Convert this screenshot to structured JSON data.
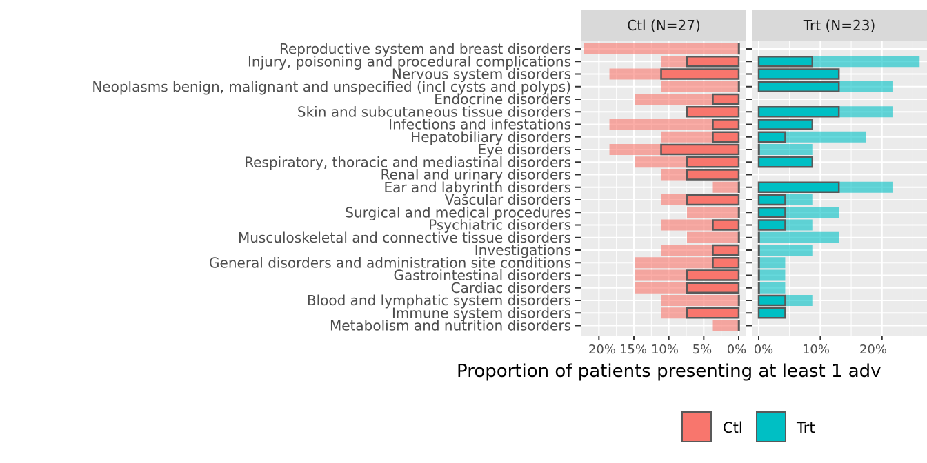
{
  "chart_data": {
    "type": "bar",
    "facets": [
      "Ctl (N=27)",
      "Trt (N=23)"
    ],
    "xlabel": "Proportion of patients presenting at least 1 adv",
    "x_ticks_left": [
      "20%",
      "15%",
      "10%",
      "5%",
      "0%"
    ],
    "x_ticks_right": [
      "0%",
      "10%",
      "20%"
    ],
    "legend": [
      {
        "name": "Ctl",
        "color": "#F8766D"
      },
      {
        "name": "Trt",
        "color": "#00BFC4"
      }
    ],
    "legend_position": "bottom",
    "categories": [
      "Reproductive system and breast disorders",
      "Injury, poisoning and procedural complications",
      "Nervous system disorders",
      "Neoplasms benign, malignant and unspecified (incl cysts and polyps)",
      "Endocrine disorders",
      "Skin and subcutaneous tissue disorders",
      "Infections and infestations",
      "Hepatobiliary disorders",
      "Eye disorders",
      "Respiratory, thoracic and mediastinal disorders",
      "Renal and urinary disorders",
      "Ear and labyrinth disorders",
      "Vascular disorders",
      "Surgical and medical procedures",
      "Psychiatric disorders",
      "Musculoskeletal and connective tissue disorders",
      "Investigations",
      "General disorders and administration site conditions",
      "Gastrointestinal disorders",
      "Cardiac disorders",
      "Blood and lymphatic system disorders",
      "Immune system disorders",
      "Metabolism and nutrition disorders"
    ],
    "series": [
      {
        "name": "Ctl",
        "all_values": [
          22.2,
          11.1,
          18.5,
          11.1,
          14.8,
          7.4,
          18.5,
          11.1,
          18.5,
          14.8,
          11.1,
          3.7,
          11.1,
          7.4,
          11.1,
          7.4,
          11.1,
          14.8,
          14.8,
          14.8,
          11.1,
          11.1,
          3.7
        ],
        "serious_values": [
          0,
          7.4,
          11.1,
          0,
          3.7,
          7.4,
          3.7,
          3.7,
          11.1,
          7.4,
          7.4,
          0,
          7.4,
          0,
          3.7,
          0,
          3.7,
          3.7,
          7.4,
          7.4,
          0,
          7.4,
          0
        ]
      },
      {
        "name": "Trt",
        "all_values": [
          0,
          26.1,
          13.0,
          21.7,
          0,
          21.7,
          8.7,
          17.4,
          8.7,
          8.7,
          0,
          21.7,
          8.7,
          13.0,
          8.7,
          13.0,
          8.7,
          4.3,
          4.3,
          4.3,
          8.7,
          4.3,
          0
        ],
        "serious_values": [
          0,
          8.7,
          13.0,
          13.0,
          0,
          13.0,
          8.7,
          4.3,
          0,
          8.7,
          0,
          13.0,
          4.3,
          4.3,
          4.3,
          0,
          0,
          0,
          0,
          0,
          4.3,
          4.3,
          0
        ]
      }
    ],
    "xlim_left": [
      0,
      22.5
    ],
    "xlim_right": [
      0,
      27.3
    ],
    "grid": true
  }
}
